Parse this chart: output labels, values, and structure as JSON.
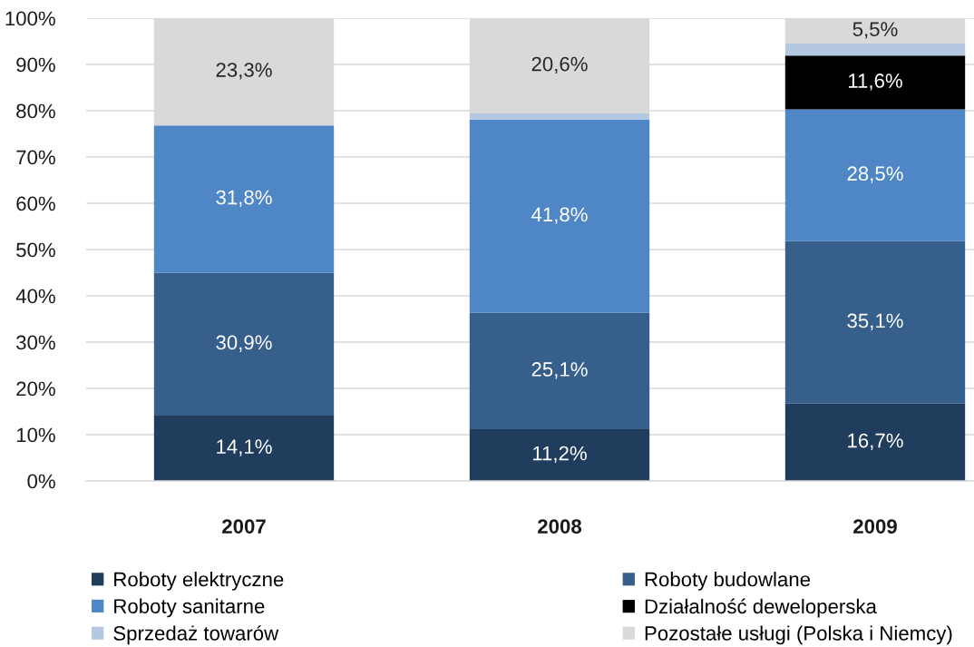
{
  "chart_data": {
    "type": "bar",
    "stacked": true,
    "categories": [
      "2007",
      "2008",
      "2009"
    ],
    "series": [
      {
        "name": "Roboty elektryczne",
        "color": "#203d5e",
        "values": [
          14.1,
          11.2,
          16.7
        ],
        "value_labels": [
          "14,1%",
          "11,2%",
          "16,7%"
        ]
      },
      {
        "name": "Roboty budowlane",
        "color": "#365f8c",
        "values": [
          30.9,
          25.1,
          35.1
        ],
        "value_labels": [
          "30,9%",
          "25,1%",
          "35,1%"
        ]
      },
      {
        "name": "Roboty sanitarne",
        "color": "#4f86c6",
        "values": [
          31.8,
          41.8,
          28.5
        ],
        "value_labels": [
          "31,8%",
          "41,8%",
          "28,5%"
        ]
      },
      {
        "name": "Działalność deweloperska",
        "color": "#000000",
        "values": [
          null,
          null,
          11.6
        ],
        "value_labels": [
          null,
          null,
          "11,6%"
        ]
      },
      {
        "name": "Sprzedaż towarów",
        "color": "#b4c8e2",
        "values": [
          null,
          1.3,
          2.6
        ]
      },
      {
        "name": "Pozostałe usługi (Polska i Niemcy)",
        "color": "#d9d9d9",
        "values": [
          23.3,
          20.6,
          5.5
        ],
        "value_labels": [
          "23,3%",
          "20,6%",
          "5,5%"
        ]
      }
    ],
    "ylim": [
      0,
      100
    ],
    "yticks": [
      {
        "value": 0,
        "label": "0%"
      },
      {
        "value": 10,
        "label": "10%"
      },
      {
        "value": 20,
        "label": "20%"
      },
      {
        "value": 30,
        "label": "30%"
      },
      {
        "value": 40,
        "label": "40%"
      },
      {
        "value": 50,
        "label": "50%"
      },
      {
        "value": 60,
        "label": "60%"
      },
      {
        "value": 70,
        "label": "70%"
      },
      {
        "value": 80,
        "label": "80%"
      },
      {
        "value": 90,
        "label": "90%"
      },
      {
        "value": 100,
        "label": "100%"
      }
    ],
    "grid": "y",
    "legend": "bottom"
  }
}
